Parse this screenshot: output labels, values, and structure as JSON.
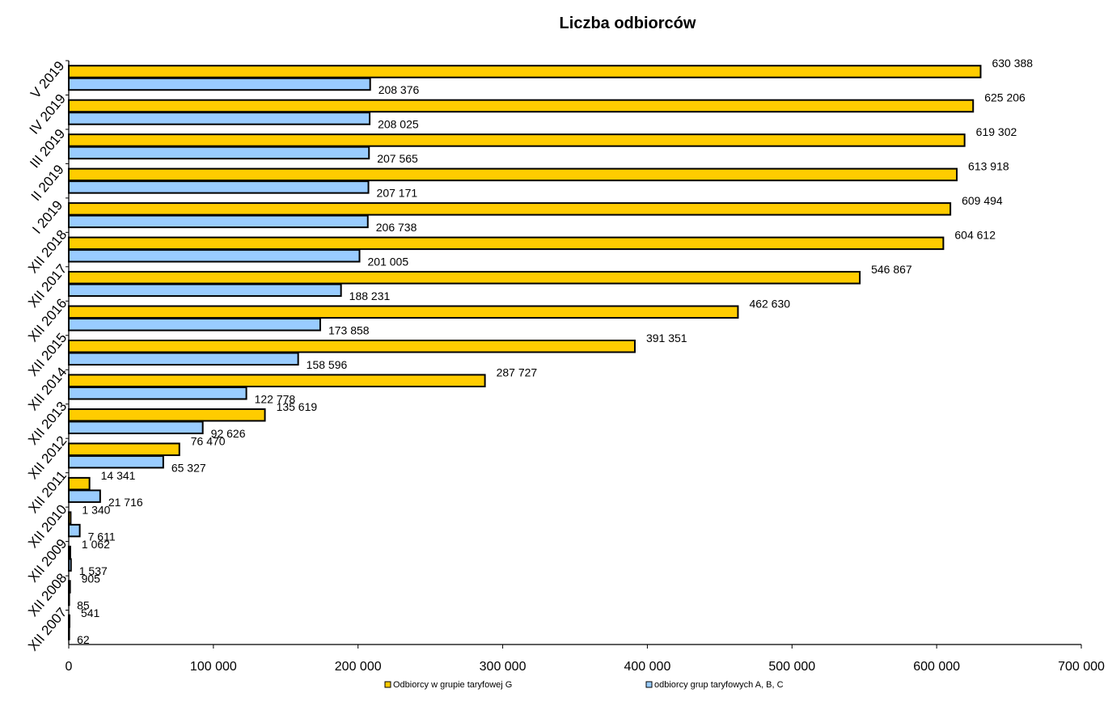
{
  "chart_data": {
    "type": "bar",
    "orientation": "horizontal",
    "title": "Liczba odbiorców",
    "xlabel": "",
    "ylabel": "",
    "xlim": [
      0,
      700000
    ],
    "x_ticks": [
      "0",
      "100 000",
      "200 000",
      "300 000",
      "400 000",
      "500 000",
      "600 000",
      "700 000"
    ],
    "categories": [
      "XII 2007",
      "XII 2008",
      "XII 2009",
      "XII 2010",
      "XII 2011",
      "XII 2012",
      "XII 2013",
      "XII 2014",
      "XII 2015",
      "XII 2016",
      "XII 2017",
      "XII 2018",
      "I 2019",
      "II 2019",
      "III 2019",
      "IV 2019",
      "V 2019"
    ],
    "series": [
      {
        "name": "Odbiorcy w grupie taryfowej G",
        "color": "#FFCC00",
        "values": [
          541,
          905,
          1062,
          1340,
          14341,
          76470,
          135619,
          287727,
          391351,
          462630,
          546867,
          604612,
          609494,
          613918,
          619302,
          625206,
          630388
        ],
        "labels": [
          "541",
          "905",
          "1 062",
          "1 340",
          "14 341",
          "76 470",
          "135 619",
          "287 727",
          "391 351",
          "462 630",
          "546 867",
          "604 612",
          "609 494",
          "613 918",
          "619 302",
          "625 206",
          "630 388"
        ]
      },
      {
        "name": "odbiorcy grup taryfowych A, B, C",
        "color": "#99CCFF",
        "values": [
          62,
          85,
          1537,
          7611,
          21716,
          65327,
          92626,
          122778,
          158596,
          173858,
          188231,
          201005,
          206738,
          207171,
          207565,
          208025,
          208376
        ],
        "labels": [
          "62",
          "85",
          "1 537",
          "7 611",
          "21 716",
          "65 327",
          "92 626",
          "122 778",
          "158 596",
          "173 858",
          "188 231",
          "201 005",
          "206 738",
          "207 171",
          "207 565",
          "208 025",
          "208 376"
        ]
      }
    ],
    "grid": false,
    "legend_position": "bottom"
  }
}
